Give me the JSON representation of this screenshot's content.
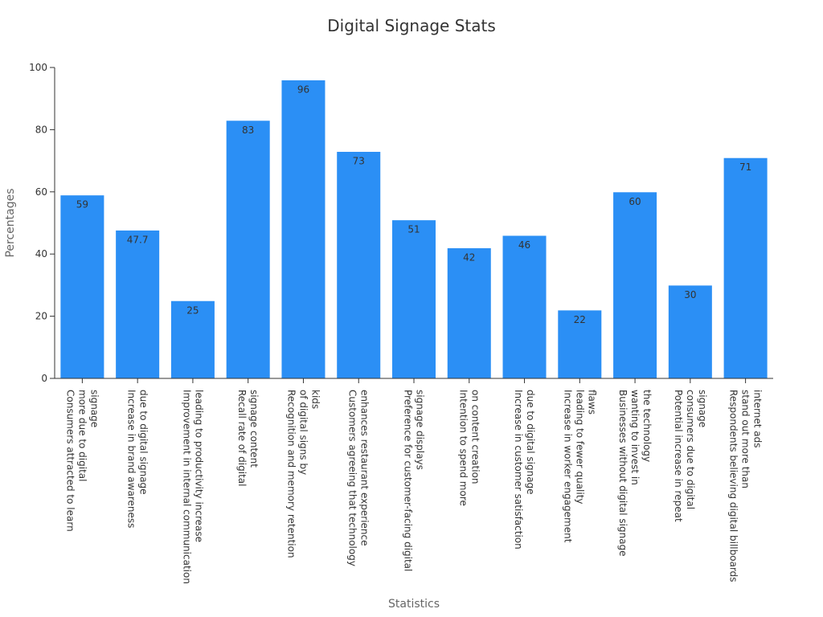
{
  "chart_data": {
    "type": "bar",
    "title": "Digital Signage Stats",
    "xlabel": "Statistics",
    "ylabel": "Percentages",
    "ylim": [
      0,
      100
    ],
    "yticks": [
      0,
      20,
      40,
      60,
      80,
      100
    ],
    "grid": false,
    "legend": "none",
    "bar_color": "#2b8ff5",
    "categories": [
      [
        "Consumers attracted to learn",
        "more due to digital",
        "signage"
      ],
      [
        "Increase in brand awareness",
        "due to digital signage"
      ],
      [
        "Improvement in internal communication",
        "leading to productivity increase"
      ],
      [
        "Recall rate of digital",
        "signage content"
      ],
      [
        "Recognition and memory retention",
        "of digital signs by",
        "kids"
      ],
      [
        "Customers agreeing that technology",
        "enhances restaurant experience"
      ],
      [
        "Preference for customer-facing digital",
        "signage displays"
      ],
      [
        "Intention to spend more",
        "on content creation"
      ],
      [
        "Increase in customer satisfaction",
        "due to digital signage"
      ],
      [
        "Increase in worker engagement",
        "leading to fewer quality",
        "flaws"
      ],
      [
        "Businesses without digital signage",
        "wanting to invest in",
        "the technology"
      ],
      [
        "Potential increase in repeat",
        "consumers due to digital",
        "signage"
      ],
      [
        "Respondents believing digital billboards",
        "stand out more than",
        "internet ads"
      ]
    ],
    "values": [
      59,
      47.7,
      25,
      83,
      96,
      73,
      51,
      42,
      46,
      22,
      60,
      30,
      71
    ]
  }
}
